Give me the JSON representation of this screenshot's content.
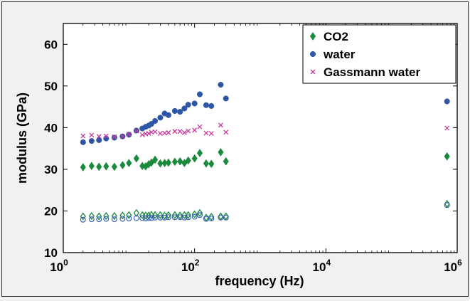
{
  "chart_data": {
    "type": "scatter",
    "xscale": "log",
    "xlabel": "frequency (Hz)",
    "ylabel": "modulus (GPa)",
    "xlim": [
      1,
      1000000
    ],
    "ylim": [
      10,
      65
    ],
    "grid": false,
    "legend_position": "top-right",
    "x_ticks": [
      {
        "value": 1,
        "base": "10",
        "exp": "0"
      },
      {
        "value": 100,
        "base": "10",
        "exp": "2"
      },
      {
        "value": 10000,
        "base": "10",
        "exp": "4"
      },
      {
        "value": 1000000,
        "base": "10",
        "exp": "6"
      }
    ],
    "y_ticks": [
      10,
      20,
      30,
      40,
      50,
      60
    ],
    "series": [
      {
        "name": "CO2",
        "marker": "diamond",
        "filled": true,
        "color": "#1a8a3c",
        "x": [
          2,
          2.7,
          3.5,
          4.5,
          6,
          8,
          10,
          13,
          16,
          18,
          20,
          22,
          25,
          30,
          35,
          40,
          50,
          60,
          70,
          80,
          100,
          120,
          150,
          180,
          250,
          300,
          700000
        ],
        "y": [
          30.5,
          30.8,
          30.6,
          30.7,
          30.6,
          31.0,
          31.5,
          32.6,
          30.8,
          30.7,
          31.2,
          31.6,
          32.3,
          31.4,
          31.5,
          31.6,
          31.8,
          31.9,
          31.5,
          32.1,
          32.6,
          33.9,
          31.4,
          31.3,
          34.1,
          31.9,
          33.1
        ]
      },
      {
        "name": "water",
        "marker": "circle",
        "filled": true,
        "color": "#2f56a6",
        "x": [
          2,
          2.7,
          3.5,
          4.5,
          6,
          8,
          10,
          13,
          16,
          18,
          20,
          22,
          25,
          30,
          35,
          40,
          50,
          60,
          70,
          80,
          100,
          120,
          150,
          180,
          250,
          300,
          700000
        ],
        "y": [
          36.5,
          36.8,
          37.0,
          37.4,
          37.6,
          37.9,
          38.3,
          39.3,
          39.8,
          40.2,
          40.5,
          40.9,
          41.6,
          42.4,
          43.4,
          43.0,
          44.0,
          43.8,
          44.6,
          45.5,
          45.8,
          48.0,
          45.4,
          45.2,
          50.3,
          47.0,
          46.3
        ]
      },
      {
        "name": "Gassmann water",
        "marker": "x",
        "filled": false,
        "color": "#c43a9c",
        "x": [
          2,
          2.7,
          3.5,
          4.5,
          6,
          8,
          10,
          13,
          16,
          18,
          20,
          22,
          25,
          30,
          35,
          40,
          50,
          60,
          70,
          80,
          100,
          120,
          150,
          180,
          250,
          300,
          700000
        ],
        "y": [
          38.0,
          38.2,
          37.9,
          38.0,
          37.8,
          37.9,
          38.4,
          39.2,
          38.3,
          38.5,
          38.6,
          38.9,
          39.0,
          38.6,
          38.7,
          38.8,
          39.1,
          39.1,
          38.8,
          39.2,
          39.4,
          40.2,
          38.7,
          38.6,
          40.6,
          38.9,
          39.9
        ]
      },
      {
        "marker": "open-diamond",
        "filled": false,
        "color": "#1a8a3c",
        "x": [
          2,
          2.7,
          3.5,
          4.5,
          6,
          8,
          10,
          13,
          16,
          18,
          20,
          22,
          25,
          30,
          35,
          40,
          50,
          60,
          70,
          80,
          100,
          120,
          150,
          180,
          250,
          300,
          700000
        ],
        "y": [
          18.7,
          18.8,
          18.7,
          18.8,
          18.8,
          18.9,
          19.0,
          19.5,
          19.0,
          18.9,
          18.9,
          19.1,
          19.0,
          19.0,
          18.9,
          19.0,
          19.0,
          18.9,
          19.0,
          19.0,
          19.2,
          19.5,
          18.4,
          18.6,
          18.7,
          18.7,
          21.7
        ]
      },
      {
        "marker": "open-circle",
        "filled": false,
        "color": "#3a64b2",
        "x": [
          2,
          2.7,
          3.5,
          4.5,
          6,
          8,
          10,
          13,
          16,
          18,
          20,
          22,
          25,
          30,
          35,
          40,
          50,
          60,
          70,
          80,
          100,
          120,
          150,
          180,
          250,
          300,
          700000
        ],
        "y": [
          17.9,
          18.0,
          18.0,
          18.1,
          18.0,
          18.1,
          18.2,
          18.3,
          18.3,
          18.2,
          18.3,
          18.3,
          18.4,
          18.4,
          18.4,
          18.5,
          18.5,
          18.5,
          18.4,
          18.5,
          18.6,
          19.0,
          18.1,
          18.2,
          18.4,
          18.4,
          21.4
        ]
      }
    ]
  }
}
